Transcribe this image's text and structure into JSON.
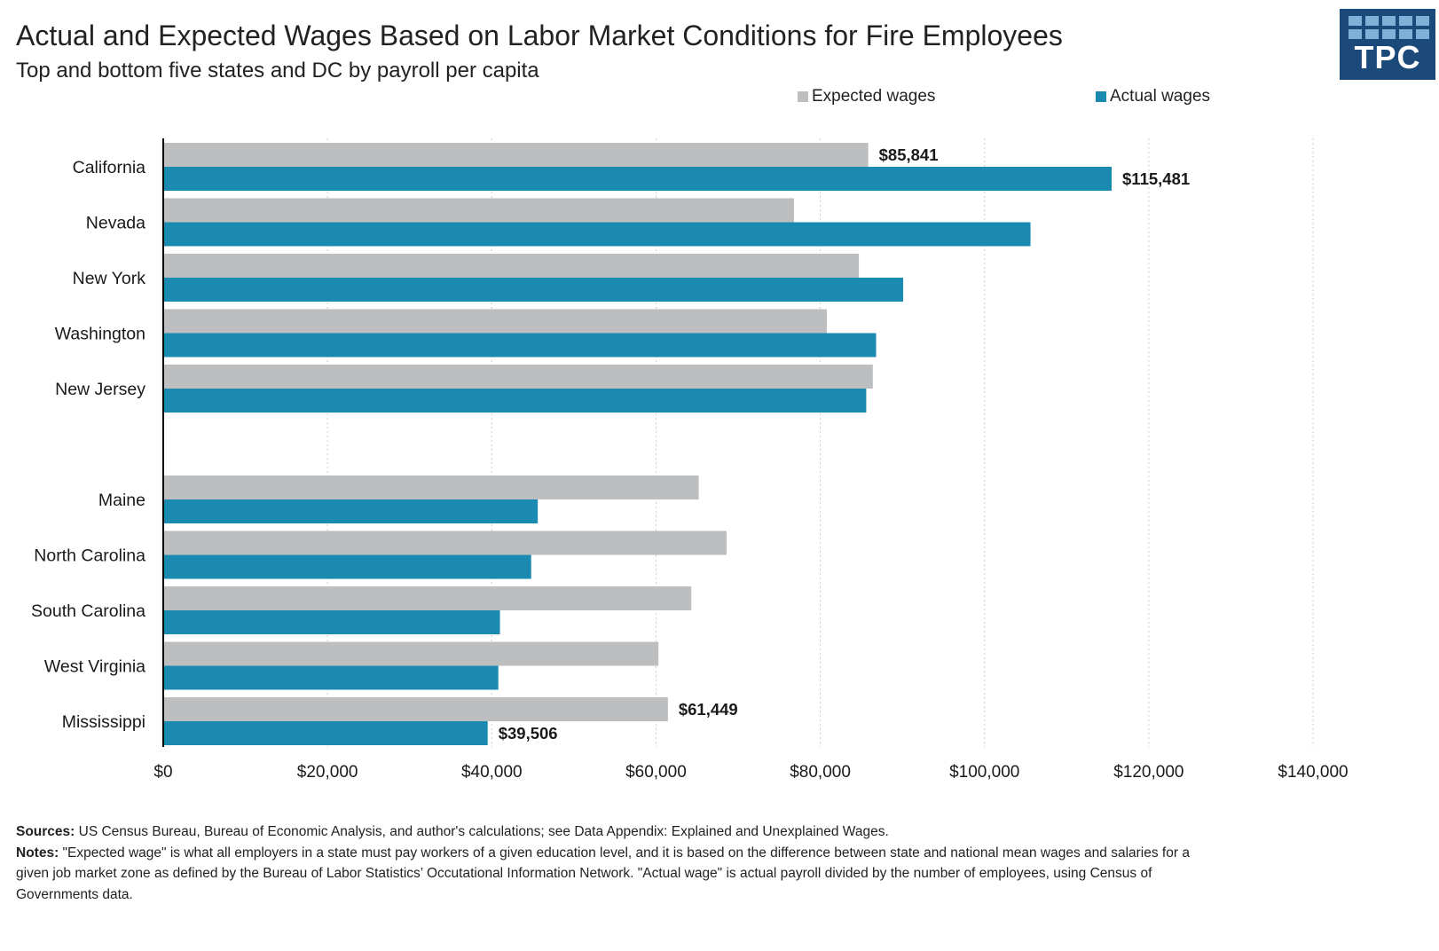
{
  "header": {
    "title": "Actual and Expected Wages Based on Labor Market Conditions for Fire Employees",
    "subtitle": "Top and bottom five states and DC  by payroll per capita"
  },
  "logo": {
    "text": "TPC",
    "color": "#1b4a7a"
  },
  "colors": {
    "expected": "#bdbec0",
    "actual": "#1a8ab0",
    "grid": "#cccccc"
  },
  "chart_data": {
    "type": "bar",
    "orientation": "horizontal",
    "categories": [
      "California",
      "Nevada",
      "New York",
      "Washington",
      "New Jersey",
      "",
      "Maine",
      "North Carolina",
      "South Carolina",
      "West Virginia",
      "Mississippi"
    ],
    "series": [
      {
        "name": "Expected wages",
        "values": [
          85841,
          76800,
          84700,
          80800,
          86400,
          null,
          65200,
          68600,
          64300,
          60300,
          61449
        ]
      },
      {
        "name": "Actual wages",
        "values": [
          115481,
          105600,
          90100,
          86800,
          85600,
          null,
          45600,
          44800,
          41000,
          40800,
          39506
        ]
      }
    ],
    "data_labels": [
      {
        "category": "California",
        "series": "Expected wages",
        "text": "$85,841"
      },
      {
        "category": "California",
        "series": "Actual wages",
        "text": "$115,481"
      },
      {
        "category": "Mississippi",
        "series": "Expected wages",
        "text": "$61,449"
      },
      {
        "category": "Mississippi",
        "series": "Actual wages",
        "text": "$39,506"
      }
    ],
    "xlim": [
      0,
      140000
    ],
    "xticks": [
      0,
      20000,
      40000,
      60000,
      80000,
      100000,
      120000,
      140000
    ],
    "xtick_labels": [
      "$0",
      "$20,000",
      "$40,000",
      "$60,000",
      "$80,000",
      "$100,000",
      "$120,000",
      "$140,000"
    ],
    "grid": "vertical dotted",
    "legend": "top-right",
    "xlabel": "",
    "ylabel": ""
  },
  "footer": {
    "sources_label": "Sources:",
    "sources_text": " US Census Bureau, Bureau of Economic Analysis, and author's calculations; see Data Appendix: Explained and Unexplained Wages.",
    "notes_label": "Notes:",
    "notes_text": " \"Expected wage\" is what all employers in a state must pay workers of a given education level, and it is based on the difference between state and national mean wages and salaries for a given job market zone as defined by the Bureau of Labor Statistics’ Occutational Information Network. \"Actual wage\" is actual payroll divided by the number of employees, using Census of Governments data."
  }
}
